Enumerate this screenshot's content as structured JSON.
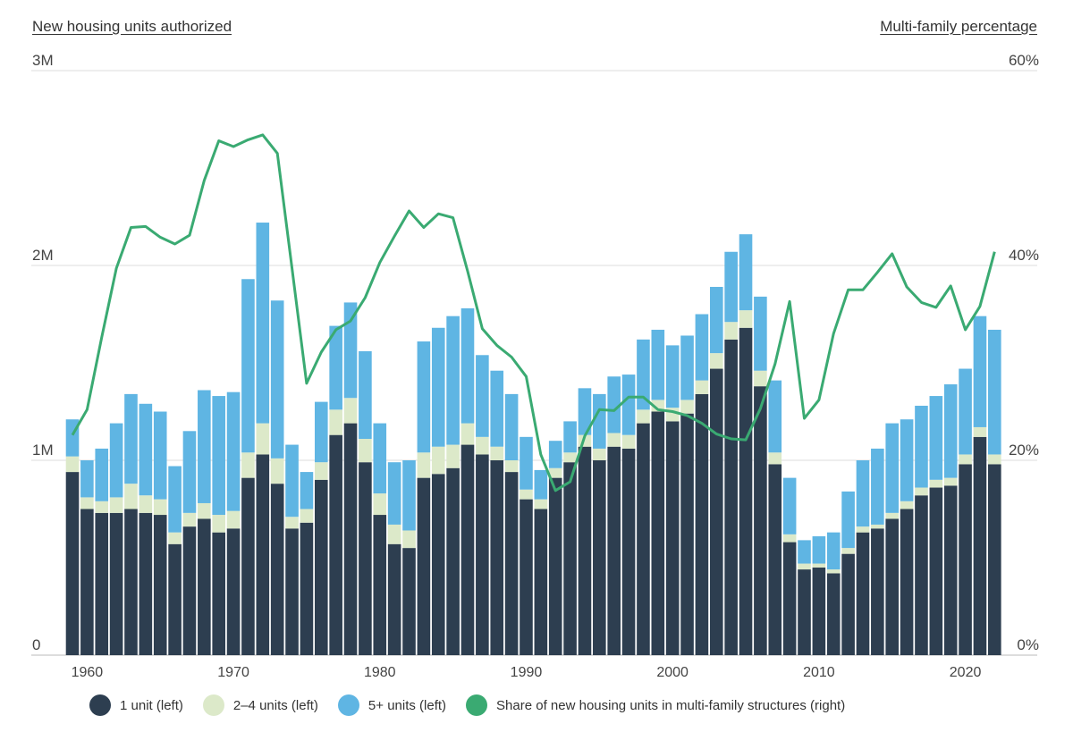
{
  "chart_data": {
    "type": "bar",
    "stacked": true,
    "left_axis_title": "New housing units authorized",
    "right_axis_title": "Multi-family percentage",
    "left_ticks": [
      {
        "value": 0,
        "label": "0"
      },
      {
        "value": 1,
        "label": "1M"
      },
      {
        "value": 2,
        "label": "2M"
      },
      {
        "value": 3,
        "label": "3M"
      }
    ],
    "right_ticks": [
      {
        "value": 0,
        "label": "0%"
      },
      {
        "value": 20,
        "label": "20%"
      },
      {
        "value": 40,
        "label": "40%"
      },
      {
        "value": 60,
        "label": "60%"
      }
    ],
    "left_unit": "millions of units",
    "ylim_left": [
      0,
      3
    ],
    "ylim_right": [
      0,
      60
    ],
    "x_tick_labels": [
      "1960",
      "1970",
      "1980",
      "1990",
      "2000",
      "2010",
      "2020"
    ],
    "grid": true,
    "legend_placement": "bottom",
    "years": [
      1959,
      1960,
      1961,
      1962,
      1963,
      1964,
      1965,
      1966,
      1967,
      1968,
      1969,
      1970,
      1971,
      1972,
      1973,
      1974,
      1975,
      1976,
      1977,
      1978,
      1979,
      1980,
      1981,
      1982,
      1983,
      1984,
      1985,
      1986,
      1987,
      1988,
      1989,
      1990,
      1991,
      1992,
      1993,
      1994,
      1995,
      1996,
      1997,
      1998,
      1999,
      2000,
      2001,
      2002,
      2003,
      2004,
      2005,
      2006,
      2007,
      2008,
      2009,
      2010,
      2011,
      2012,
      2013,
      2014,
      2015,
      2016,
      2017,
      2018,
      2019,
      2020,
      2021,
      2022
    ],
    "series": [
      {
        "name": "1 unit (left)",
        "color": "#2d3e50",
        "axis": "left",
        "type": "bar",
        "values": [
          0.94,
          0.75,
          0.73,
          0.73,
          0.75,
          0.73,
          0.72,
          0.57,
          0.66,
          0.7,
          0.63,
          0.65,
          0.91,
          1.03,
          0.88,
          0.65,
          0.68,
          0.9,
          1.13,
          1.19,
          0.99,
          0.72,
          0.57,
          0.55,
          0.91,
          0.93,
          0.96,
          1.08,
          1.03,
          1.0,
          0.94,
          0.8,
          0.75,
          0.91,
          0.99,
          1.07,
          1.0,
          1.07,
          1.06,
          1.19,
          1.25,
          1.2,
          1.24,
          1.34,
          1.47,
          1.62,
          1.68,
          1.38,
          0.98,
          0.58,
          0.44,
          0.45,
          0.42,
          0.52,
          0.63,
          0.65,
          0.7,
          0.75,
          0.82,
          0.86,
          0.87,
          0.98,
          1.12,
          0.98
        ]
      },
      {
        "name": "2–4 units (left)",
        "color": "#dce9c9",
        "axis": "left",
        "type": "bar",
        "values": [
          0.08,
          0.06,
          0.06,
          0.08,
          0.13,
          0.09,
          0.08,
          0.06,
          0.07,
          0.08,
          0.09,
          0.09,
          0.13,
          0.16,
          0.13,
          0.06,
          0.07,
          0.09,
          0.13,
          0.13,
          0.12,
          0.11,
          0.1,
          0.09,
          0.13,
          0.14,
          0.12,
          0.11,
          0.09,
          0.07,
          0.06,
          0.05,
          0.05,
          0.05,
          0.05,
          0.06,
          0.06,
          0.07,
          0.07,
          0.07,
          0.06,
          0.07,
          0.07,
          0.07,
          0.08,
          0.09,
          0.09,
          0.08,
          0.06,
          0.04,
          0.03,
          0.02,
          0.02,
          0.03,
          0.03,
          0.02,
          0.03,
          0.04,
          0.04,
          0.04,
          0.04,
          0.05,
          0.05,
          0.05
        ]
      },
      {
        "name": "5+ units (left)",
        "color": "#5fb5e3",
        "axis": "left",
        "type": "bar",
        "values": [
          0.19,
          0.19,
          0.27,
          0.38,
          0.46,
          0.47,
          0.45,
          0.34,
          0.42,
          0.58,
          0.61,
          0.61,
          0.89,
          1.03,
          0.81,
          0.37,
          0.19,
          0.31,
          0.43,
          0.49,
          0.45,
          0.36,
          0.32,
          0.36,
          0.57,
          0.61,
          0.66,
          0.59,
          0.42,
          0.39,
          0.34,
          0.27,
          0.15,
          0.14,
          0.16,
          0.24,
          0.28,
          0.29,
          0.31,
          0.36,
          0.36,
          0.32,
          0.33,
          0.34,
          0.34,
          0.36,
          0.39,
          0.38,
          0.37,
          0.29,
          0.12,
          0.14,
          0.19,
          0.29,
          0.34,
          0.39,
          0.46,
          0.42,
          0.42,
          0.43,
          0.48,
          0.44,
          0.57,
          0.64
        ]
      },
      {
        "name": "Share of new housing units in multi-family structures (right)",
        "color": "#3aaa72",
        "axis": "right",
        "type": "line",
        "values": [
          22.6,
          25.2,
          32.6,
          39.7,
          43.9,
          44.0,
          42.9,
          42.2,
          43.1,
          48.7,
          52.8,
          52.2,
          52.9,
          53.4,
          51.5,
          39.7,
          27.9,
          31.1,
          33.4,
          34.3,
          36.7,
          40.3,
          43.0,
          45.6,
          43.9,
          45.3,
          44.9,
          39.4,
          33.5,
          31.8,
          30.6,
          28.6,
          20.6,
          16.9,
          17.8,
          22.5,
          25.2,
          25.1,
          26.5,
          26.5,
          25.2,
          25.0,
          24.6,
          23.8,
          22.7,
          22.2,
          22.1,
          25.3,
          29.9,
          36.3,
          24.3,
          26.2,
          33.0,
          37.5,
          37.5,
          39.3,
          41.2,
          37.8,
          36.2,
          35.7,
          37.9,
          33.4,
          35.8,
          41.4
        ]
      }
    ]
  }
}
